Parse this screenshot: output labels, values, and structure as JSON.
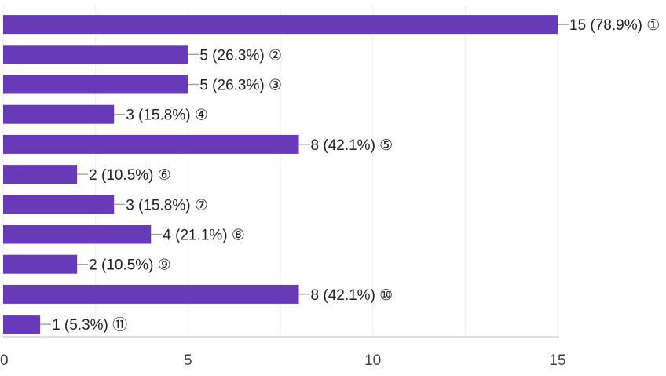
{
  "chart_data": {
    "type": "bar",
    "orientation": "horizontal",
    "categories": [
      "①",
      "②",
      "③",
      "④",
      "⑤",
      "⑥",
      "⑦",
      "⑧",
      "⑨",
      "⑩",
      "⑪"
    ],
    "values": [
      15,
      5,
      5,
      3,
      8,
      2,
      3,
      4,
      2,
      8,
      1
    ],
    "percents": [
      "78.9%",
      "26.3%",
      "26.3%",
      "15.8%",
      "42.1%",
      "10.5%",
      "15.8%",
      "21.1%",
      "10.5%",
      "42.1%",
      "5.3%"
    ],
    "data_labels": [
      "15 (78.9%)",
      "5 (26.3%)",
      "5 (26.3%)",
      "3 (15.8%)",
      "8 (42.1%)",
      "2 (10.5%)",
      "3 (15.8%)",
      "4 (21.1%)",
      "2 (10.5%)",
      "8 (42.1%)",
      "1 (5.3%)"
    ],
    "x_ticks": [
      "0",
      "5",
      "10",
      "15"
    ],
    "xlim": [
      0,
      15
    ],
    "grid": true,
    "bar_color": "#673ab7",
    "title": "",
    "xlabel": "",
    "ylabel": ""
  }
}
